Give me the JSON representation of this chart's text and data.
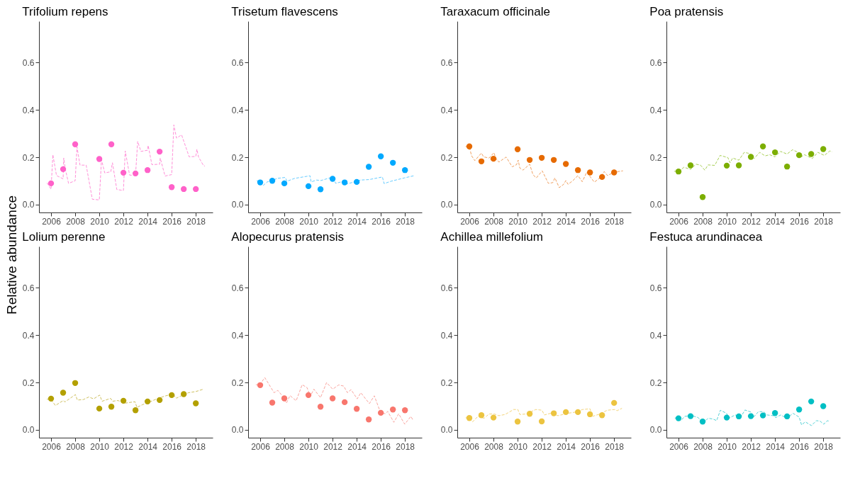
{
  "chart_data": [
    {
      "type": "scatter",
      "title": "Trifolium repens",
      "ylabel": "Relative abundance",
      "xlim": [
        2005.0,
        2019.4
      ],
      "ylim": [
        -0.033,
        0.775
      ],
      "xticks": [
        2006,
        2008,
        2010,
        2012,
        2014,
        2016,
        2018
      ],
      "yticks": [
        {
          "value": 0,
          "label": "0.0"
        },
        {
          "value": 0.2,
          "label": "0.2"
        },
        {
          "value": 0.4,
          "label": "0.4"
        },
        {
          "value": 0.6,
          "label": "0.6"
        }
      ],
      "series": [
        {
          "type": "line",
          "color": "#ff8fd8",
          "line_style": "dashed",
          "marker": "none",
          "x": [
            2005.67,
            2006,
            2006.15,
            2006.45,
            2007,
            2007.05,
            2007.18,
            2007.45,
            2008,
            2008.15,
            2008.4,
            2008.91,
            2009.42,
            2010,
            2010.18,
            2010.45,
            2010.95,
            2011.09,
            2011.45,
            2012,
            2012.15,
            2012.51,
            2013,
            2013.18,
            2013.45,
            2014,
            2014.05,
            2014.36,
            2015,
            2015.05,
            2015.45,
            2016,
            2016.18,
            2016.4,
            2016.82,
            2017.45,
            2018,
            2018.09,
            2018.22,
            2018.64,
            2018.75
          ],
          "values": [
            0.092,
            0.065,
            0.211,
            0.123,
            0.109,
            0.197,
            0.151,
            0.09,
            0.101,
            0.244,
            0.167,
            0.167,
            0.023,
            0.02,
            0.19,
            0.134,
            0.139,
            0.177,
            0.064,
            0.06,
            0.227,
            0.125,
            0.123,
            0.267,
            0.225,
            0.23,
            0.25,
            0.169,
            0.171,
            0.197,
            0.121,
            0.127,
            0.337,
            0.281,
            0.295,
            0.202,
            0.204,
            0.234,
            0.202,
            0.165,
            0.163
          ]
        },
        {
          "type": "scatter",
          "color": "#ff61c9",
          "marker": "circle",
          "x": [
            2006,
            2007,
            2008,
            2010,
            2011,
            2012,
            2013,
            2014,
            2015,
            2016,
            2017,
            2018
          ],
          "values": [
            0.09,
            0.15,
            0.255,
            0.193,
            0.255,
            0.135,
            0.132,
            0.146,
            0.224,
            0.074,
            0.066,
            0.066
          ]
        }
      ]
    },
    {
      "type": "scatter",
      "title": "Trisetum flavescens",
      "xlim": [
        2005.0,
        2019.4
      ],
      "ylim": [
        -0.033,
        0.775
      ],
      "xticks": [
        2006,
        2008,
        2010,
        2012,
        2014,
        2016,
        2018
      ],
      "yticks": [
        {
          "value": 0,
          "label": "0.0"
        },
        {
          "value": 0.2,
          "label": "0.2"
        },
        {
          "value": 0.4,
          "label": "0.4"
        },
        {
          "value": 0.6,
          "label": "0.6"
        }
      ],
      "series": [
        {
          "type": "line",
          "color": "#66ccff",
          "line_style": "dashed",
          "marker": "none",
          "x": [
            2005.71,
            2006,
            2006.25,
            2006.58,
            2007.04,
            2007.4,
            2008.07,
            2008.22,
            2008.85,
            2010.13,
            2010.22,
            2010.67,
            2011.04,
            2011.76,
            2012.13,
            2012.25,
            2012.85,
            2013.13,
            2013.58,
            2014.31,
            2015.04,
            2016.13,
            2016.27,
            2016.85,
            2017.95,
            2018.73
          ],
          "values": [
            0.101,
            0.099,
            0.081,
            0.096,
            0.102,
            0.111,
            0.115,
            0.099,
            0.111,
            0.122,
            0.096,
            0.104,
            0.102,
            0.113,
            0.108,
            0.09,
            0.098,
            0.087,
            0.093,
            0.104,
            0.106,
            0.117,
            0.089,
            0.099,
            0.113,
            0.122
          ]
        },
        {
          "type": "scatter",
          "color": "#00a9ff",
          "marker": "circle",
          "x": [
            2006,
            2007,
            2008,
            2010,
            2011,
            2012,
            2013,
            2014,
            2015,
            2016,
            2017,
            2018
          ],
          "values": [
            0.094,
            0.101,
            0.09,
            0.078,
            0.065,
            0.109,
            0.094,
            0.096,
            0.16,
            0.204,
            0.177,
            0.146
          ]
        }
      ]
    },
    {
      "type": "scatter",
      "title": "Taraxacum officinale",
      "xlim": [
        2005.0,
        2019.4
      ],
      "ylim": [
        -0.033,
        0.775
      ],
      "xticks": [
        2006,
        2008,
        2010,
        2012,
        2014,
        2016,
        2018
      ],
      "yticks": [
        {
          "value": 0,
          "label": "0.0"
        },
        {
          "value": 0.2,
          "label": "0.2"
        },
        {
          "value": 0.4,
          "label": "0.4"
        },
        {
          "value": 0.6,
          "label": "0.6"
        }
      ],
      "series": [
        {
          "type": "line",
          "color": "#f0a060",
          "line_style": "dashed",
          "marker": "none",
          "x": [
            2005.69,
            2006,
            2006.18,
            2006.45,
            2007,
            2007.18,
            2007.64,
            2008.04,
            2008.18,
            2008.45,
            2009.05,
            2009.55,
            2009.91,
            2010.05,
            2010.18,
            2010.45,
            2011,
            2011.27,
            2011.55,
            2012.04,
            2012.55,
            2012.91,
            2013.09,
            2013.45,
            2013.82,
            2014,
            2014.18,
            2014.55,
            2015,
            2015.36,
            2015.73,
            2016.36,
            2016.82,
            2017.18,
            2017.45,
            2018,
            2018.73
          ],
          "values": [
            0.246,
            0.244,
            0.207,
            0.186,
            0.218,
            0.202,
            0.197,
            0.22,
            0.197,
            0.18,
            0.201,
            0.16,
            0.169,
            0.188,
            0.155,
            0.146,
            0.171,
            0.127,
            0.113,
            0.143,
            0.09,
            0.093,
            0.113,
            0.072,
            0.086,
            0.102,
            0.086,
            0.1,
            0.123,
            0.097,
            0.137,
            0.095,
            0.113,
            0.14,
            0.123,
            0.137,
            0.143
          ]
        },
        {
          "type": "scatter",
          "color": "#e66a00",
          "marker": "circle",
          "x": [
            2006,
            2007,
            2008,
            2010,
            2011,
            2012,
            2013,
            2014,
            2015,
            2016,
            2017,
            2018
          ],
          "values": [
            0.246,
            0.183,
            0.194,
            0.234,
            0.189,
            0.198,
            0.189,
            0.172,
            0.146,
            0.136,
            0.117,
            0.136
          ]
        }
      ]
    },
    {
      "type": "scatter",
      "title": "Poa pratensis",
      "xlim": [
        2005.0,
        2019.4
      ],
      "ylim": [
        -0.033,
        0.775
      ],
      "xticks": [
        2006,
        2008,
        2010,
        2012,
        2014,
        2016,
        2018
      ],
      "yticks": [
        {
          "value": 0,
          "label": "0.0"
        },
        {
          "value": 0.2,
          "label": "0.2"
        },
        {
          "value": 0.4,
          "label": "0.4"
        },
        {
          "value": 0.6,
          "label": "0.6"
        }
      ],
      "series": [
        {
          "type": "line",
          "color": "#a8cf55",
          "line_style": "dashed",
          "marker": "none",
          "x": [
            2005.64,
            2006.09,
            2006.45,
            2007,
            2007.45,
            2007.82,
            2008.18,
            2008.45,
            2009,
            2009.45,
            2010.09,
            2010.27,
            2010.49,
            2011,
            2011.45,
            2011.91,
            2012.27,
            2012.73,
            2013.18,
            2013.55,
            2014,
            2014.45,
            2015,
            2015.45,
            2015.91,
            2016.18,
            2016.45,
            2017.09,
            2017.55,
            2018.09,
            2018.55,
            2018.73
          ],
          "values": [
            0.141,
            0.143,
            0.158,
            0.149,
            0.171,
            0.167,
            0.146,
            0.168,
            0.166,
            0.208,
            0.199,
            0.177,
            0.197,
            0.188,
            0.221,
            0.216,
            0.195,
            0.221,
            0.206,
            0.211,
            0.202,
            0.225,
            0.214,
            0.232,
            0.221,
            0.202,
            0.211,
            0.195,
            0.221,
            0.208,
            0.227,
            0.223
          ]
        },
        {
          "type": "scatter",
          "color": "#7cae00",
          "marker": "circle",
          "x": [
            2006,
            2007,
            2008,
            2010,
            2011,
            2012,
            2013,
            2014,
            2015,
            2016,
            2017,
            2018
          ],
          "values": [
            0.14,
            0.166,
            0.032,
            0.165,
            0.166,
            0.202,
            0.246,
            0.221,
            0.161,
            0.209,
            0.214,
            0.235
          ]
        }
      ]
    },
    {
      "type": "scatter",
      "title": "Lolium perenne",
      "xlim": [
        2005.0,
        2019.4
      ],
      "ylim": [
        -0.033,
        0.775
      ],
      "xticks": [
        2006,
        2008,
        2010,
        2012,
        2014,
        2016,
        2018
      ],
      "yticks": [
        {
          "value": 0,
          "label": "0.0"
        },
        {
          "value": 0.2,
          "label": "0.2"
        },
        {
          "value": 0.4,
          "label": "0.4"
        },
        {
          "value": 0.6,
          "label": "0.6"
        }
      ],
      "series": [
        {
          "type": "line",
          "color": "#cfc060",
          "line_style": "dashed",
          "marker": "none",
          "x": [
            2005.66,
            2006,
            2006.36,
            2007.01,
            2007.15,
            2008.02,
            2008.18,
            2008.68,
            2009.13,
            2009.53,
            2010.03,
            2010.23,
            2010.94,
            2011.1,
            2011.54,
            2012.15,
            2012.96,
            2013.12,
            2013.56,
            2014.17,
            2014.77,
            2015.38,
            2016.09,
            2016.39,
            2016.79,
            2017.39,
            2018,
            2018.64
          ],
          "values": [
            0.13,
            0.128,
            0.103,
            0.124,
            0.118,
            0.149,
            0.126,
            0.128,
            0.139,
            0.131,
            0.147,
            0.121,
            0.133,
            0.121,
            0.124,
            0.113,
            0.119,
            0.095,
            0.106,
            0.118,
            0.131,
            0.142,
            0.152,
            0.134,
            0.144,
            0.157,
            0.162,
            0.172
          ]
        },
        {
          "type": "scatter",
          "color": "#b3a000",
          "marker": "circle",
          "x": [
            2006,
            2007,
            2008,
            2010,
            2011,
            2012,
            2013,
            2014,
            2015,
            2016,
            2017,
            2018
          ],
          "values": [
            0.132,
            0.157,
            0.198,
            0.09,
            0.098,
            0.123,
            0.083,
            0.12,
            0.126,
            0.147,
            0.151,
            0.112
          ]
        }
      ]
    },
    {
      "type": "scatter",
      "title": "Alopecurus pratensis",
      "xlim": [
        2005.0,
        2019.4
      ],
      "ylim": [
        -0.033,
        0.775
      ],
      "xticks": [
        2006,
        2008,
        2010,
        2012,
        2014,
        2016,
        2018
      ],
      "yticks": [
        {
          "value": 0,
          "label": "0.0"
        },
        {
          "value": 0.2,
          "label": "0.2"
        },
        {
          "value": 0.4,
          "label": "0.4"
        },
        {
          "value": 0.6,
          "label": "0.6"
        }
      ],
      "series": [
        {
          "type": "line",
          "color": "#faa49e",
          "line_style": "dashed",
          "marker": "none",
          "x": [
            2005.64,
            2005.94,
            2006.38,
            2007.15,
            2007.46,
            2007.86,
            2008.17,
            2008.47,
            2008.98,
            2009.48,
            2009.89,
            2010.15,
            2010.45,
            2011,
            2011.5,
            2012.01,
            2012.51,
            2012.92,
            2013.23,
            2013.53,
            2014.04,
            2014.34,
            2015.05,
            2015.46,
            2015.96,
            2016.36,
            2016.57,
            2017.08,
            2017.48,
            2017.98,
            2018.49,
            2018.69
          ],
          "values": [
            0.191,
            0.188,
            0.221,
            0.157,
            0.167,
            0.142,
            0.113,
            0.145,
            0.123,
            0.191,
            0.178,
            0.142,
            0.172,
            0.136,
            0.2,
            0.172,
            0.19,
            0.185,
            0.157,
            0.17,
            0.131,
            0.157,
            0.111,
            0.144,
            0.075,
            0.068,
            0.078,
            0.032,
            0.068,
            0.024,
            0.057,
            0.039
          ]
        },
        {
          "type": "scatter",
          "color": "#f8766d",
          "marker": "circle",
          "x": [
            2006,
            2007,
            2008,
            2010,
            2011,
            2012,
            2013,
            2014,
            2015,
            2016,
            2017,
            2018
          ],
          "values": [
            0.189,
            0.115,
            0.133,
            0.147,
            0.098,
            0.133,
            0.117,
            0.089,
            0.044,
            0.072,
            0.086,
            0.083
          ]
        }
      ]
    },
    {
      "type": "scatter",
      "title": "Achillea millefolium",
      "xlim": [
        2005.0,
        2019.4
      ],
      "ylim": [
        -0.033,
        0.775
      ],
      "xticks": [
        2006,
        2008,
        2010,
        2012,
        2014,
        2016,
        2018
      ],
      "yticks": [
        {
          "value": 0,
          "label": "0.0"
        },
        {
          "value": 0.2,
          "label": "0.2"
        },
        {
          "value": 0.4,
          "label": "0.4"
        },
        {
          "value": 0.6,
          "label": "0.6"
        }
      ],
      "series": [
        {
          "type": "line",
          "color": "#f3d47a",
          "line_style": "dashed",
          "marker": "none",
          "x": [
            2005.69,
            2006,
            2006.27,
            2006.71,
            2007.22,
            2007.63,
            2008.08,
            2008.45,
            2008.96,
            2009.67,
            2010.02,
            2010.18,
            2010.69,
            2011.51,
            2012.02,
            2012.22,
            2012.73,
            2013.35,
            2014.16,
            2014.78,
            2015.39,
            2016,
            2016.2,
            2016.82,
            2017.43,
            2018.04,
            2018.24,
            2018.65
          ],
          "values": [
            0.051,
            0.051,
            0.034,
            0.057,
            0.049,
            0.067,
            0.067,
            0.06,
            0.065,
            0.086,
            0.086,
            0.065,
            0.067,
            0.086,
            0.083,
            0.063,
            0.07,
            0.06,
            0.07,
            0.075,
            0.086,
            0.089,
            0.057,
            0.067,
            0.083,
            0.086,
            0.081,
            0.091
          ]
        },
        {
          "type": "scatter",
          "color": "#ecc440",
          "marker": "circle",
          "x": [
            2006,
            2007,
            2008,
            2010,
            2011,
            2012,
            2013,
            2014,
            2015,
            2016,
            2017,
            2018
          ],
          "values": [
            0.05,
            0.062,
            0.052,
            0.035,
            0.068,
            0.036,
            0.07,
            0.075,
            0.075,
            0.066,
            0.062,
            0.114
          ]
        }
      ]
    },
    {
      "type": "scatter",
      "title": "Festuca arundinacea",
      "xlim": [
        2005.0,
        2019.4
      ],
      "ylim": [
        -0.033,
        0.775
      ],
      "xticks": [
        2006,
        2008,
        2010,
        2012,
        2014,
        2016,
        2018
      ],
      "yticks": [
        {
          "value": 0,
          "label": "0.0"
        },
        {
          "value": 0.2,
          "label": "0.2"
        },
        {
          "value": 0.4,
          "label": "0.4"
        },
        {
          "value": 0.6,
          "label": "0.6"
        }
      ],
      "series": [
        {
          "type": "line",
          "color": "#55d2d6",
          "line_style": "dashed",
          "marker": "none",
          "x": [
            2005.69,
            2006,
            2006.2,
            2006.51,
            2007.12,
            2007.63,
            2008.04,
            2008.45,
            2008.86,
            2009.16,
            2009.47,
            2009.98,
            2010.18,
            2010.69,
            2011.2,
            2011.51,
            2012.02,
            2012.22,
            2012.63,
            2013.04,
            2013.35,
            2013.86,
            2014.06,
            2014.47,
            2014.98,
            2015.49,
            2016,
            2016.2,
            2016.51,
            2017.02,
            2017.43,
            2017.73,
            2018.04,
            2018.35,
            2018.55
          ],
          "values": [
            0.05,
            0.049,
            0.039,
            0.057,
            0.06,
            0.052,
            0.028,
            0.049,
            0.046,
            0.039,
            0.083,
            0.07,
            0.049,
            0.063,
            0.057,
            0.084,
            0.075,
            0.054,
            0.077,
            0.077,
            0.063,
            0.06,
            0.052,
            0.063,
            0.049,
            0.07,
            0.054,
            0.021,
            0.034,
            0.018,
            0.039,
            0.037,
            0.024,
            0.039,
            0.035
          ]
        },
        {
          "type": "scatter",
          "color": "#00bfc4",
          "marker": "circle",
          "x": [
            2006,
            2007,
            2008,
            2010,
            2011,
            2012,
            2013,
            2014,
            2015,
            2016,
            2017,
            2018
          ],
          "values": [
            0.049,
            0.058,
            0.035,
            0.052,
            0.057,
            0.058,
            0.061,
            0.071,
            0.057,
            0.086,
            0.12,
            0.1
          ]
        }
      ]
    }
  ]
}
